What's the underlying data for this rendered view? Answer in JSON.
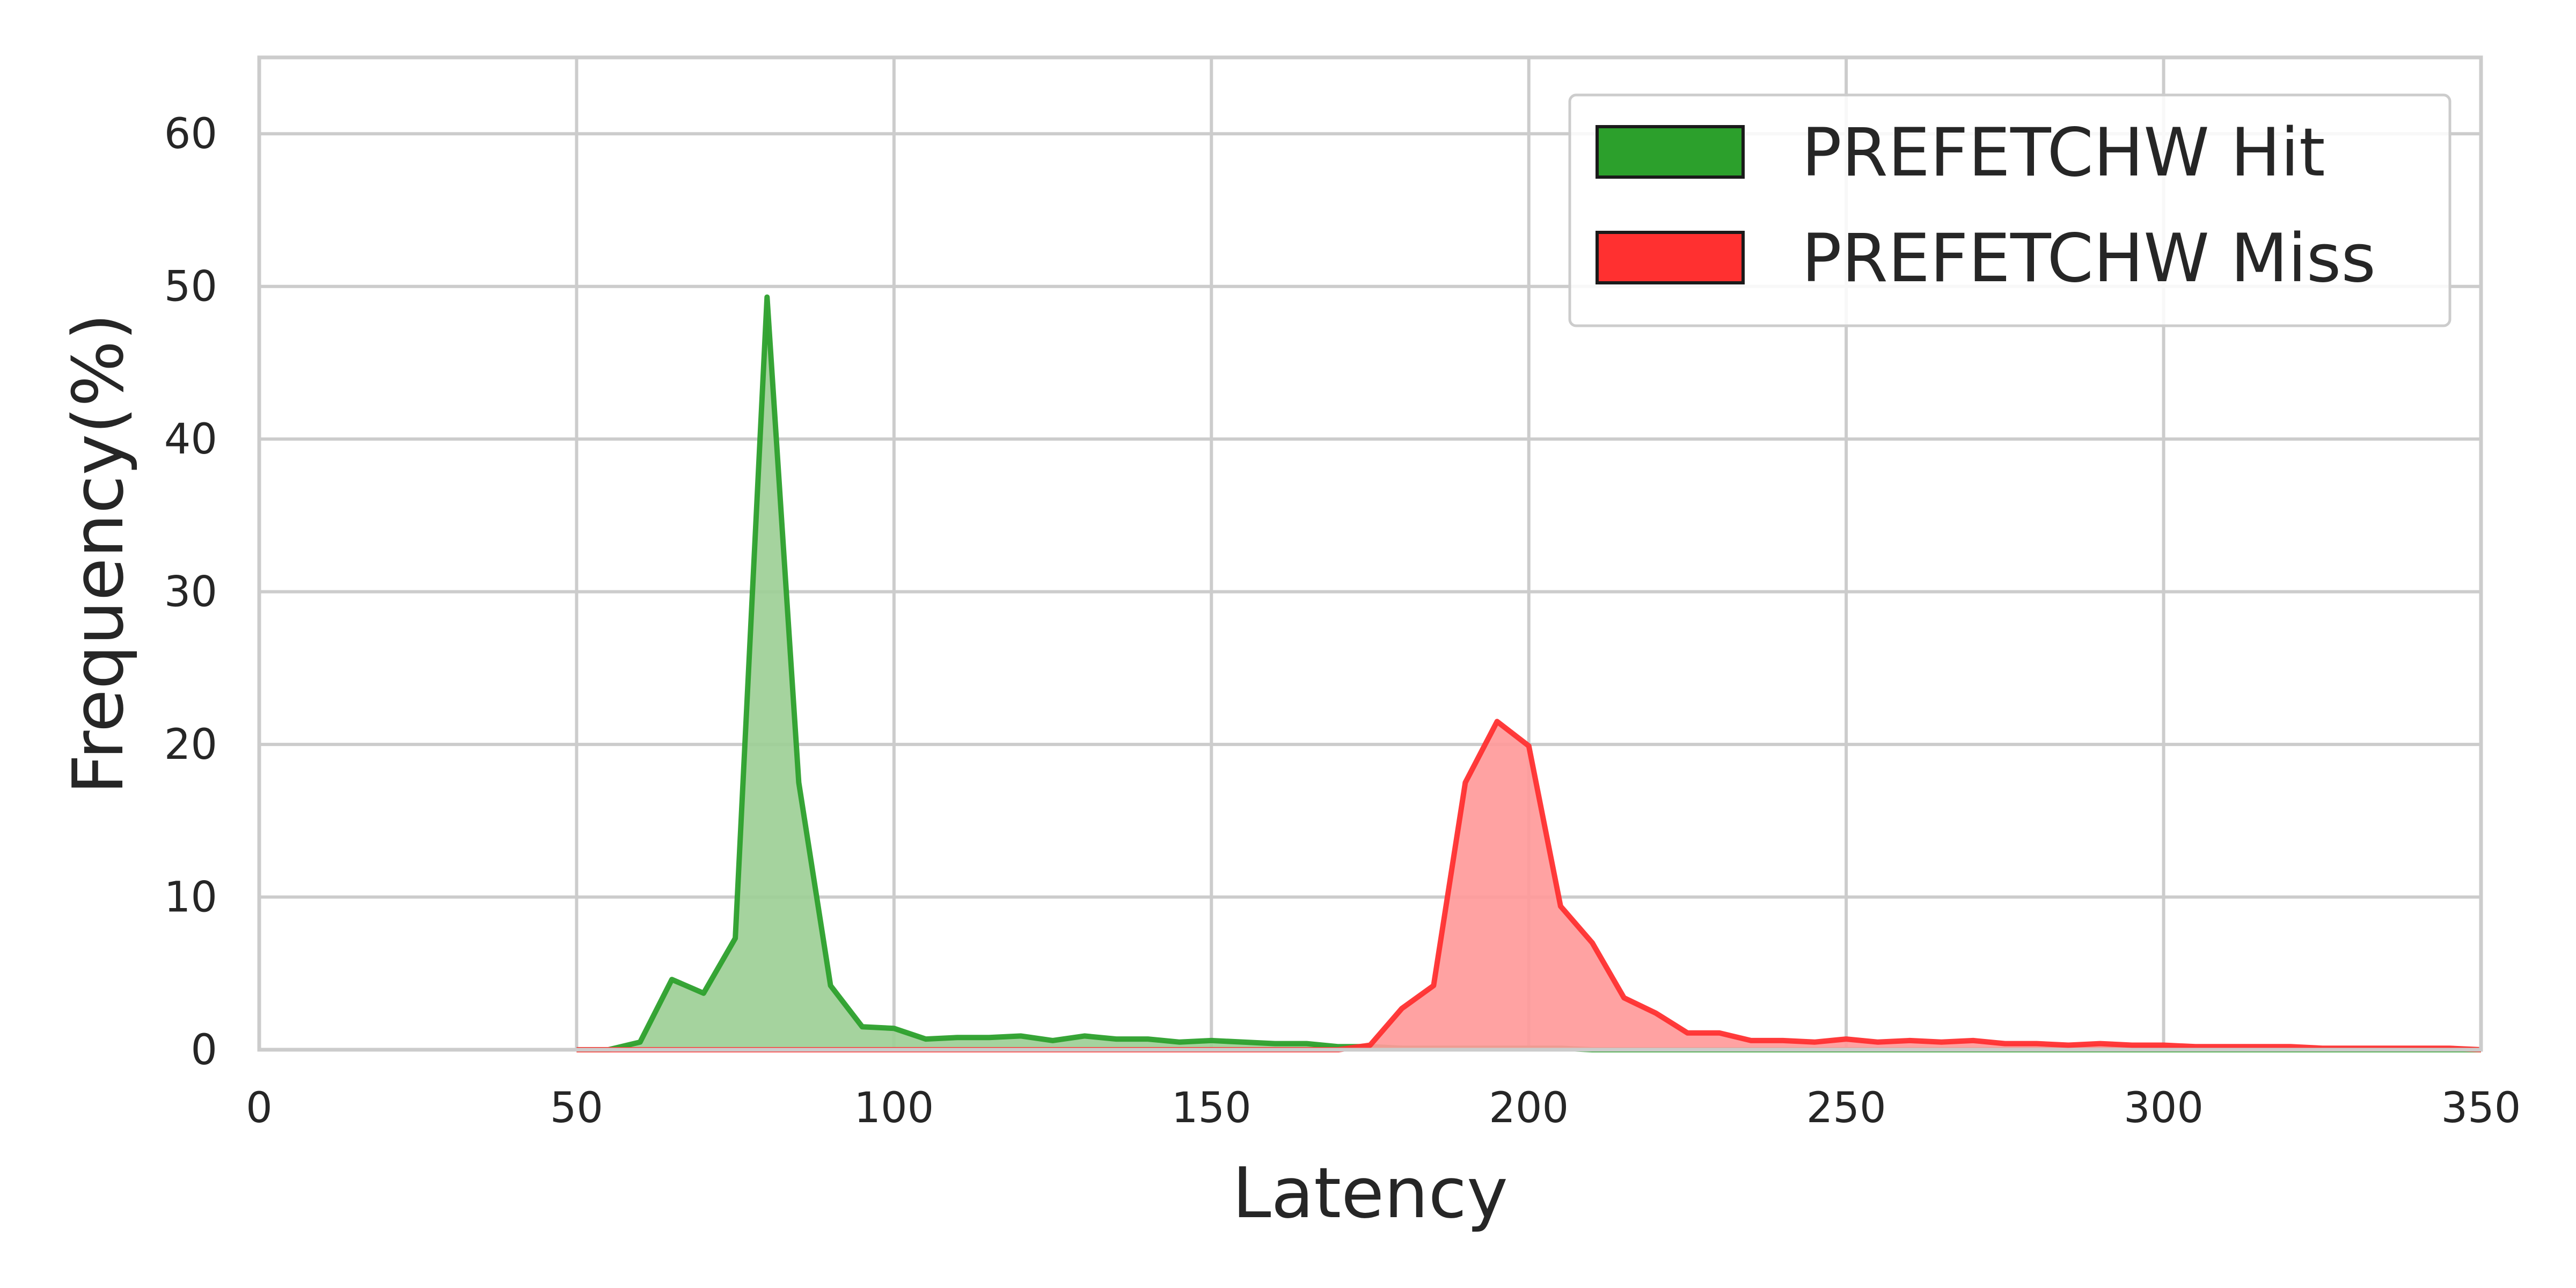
{
  "chart_data": {
    "type": "area",
    "title": "",
    "xlabel": "Latency",
    "ylabel": "Frequency(%)",
    "xlim": [
      0,
      350
    ],
    "ylim": [
      0,
      65
    ],
    "xticks": [
      0,
      50,
      100,
      150,
      200,
      250,
      300,
      350
    ],
    "yticks": [
      0,
      10,
      20,
      30,
      40,
      50,
      60
    ],
    "grid": true,
    "legend_position": "top-right",
    "series": [
      {
        "name": "PREFETCHW Hit",
        "color": "#2ca02c",
        "fill_color": "#9dcf96",
        "x": [
          50,
          55,
          60,
          65,
          70,
          75,
          80,
          85,
          90,
          95,
          100,
          105,
          110,
          115,
          120,
          125,
          130,
          135,
          140,
          145,
          150,
          155,
          160,
          165,
          170,
          175,
          180,
          185,
          190,
          195,
          200,
          205,
          210,
          220,
          240,
          260,
          280,
          300,
          320,
          340,
          350
        ],
        "values": [
          0,
          0,
          0.5,
          4.6,
          3.7,
          7.3,
          49.3,
          17.5,
          4.2,
          1.5,
          1.4,
          0.7,
          0.8,
          0.8,
          0.9,
          0.6,
          0.9,
          0.7,
          0.7,
          0.5,
          0.6,
          0.5,
          0.4,
          0.4,
          0.2,
          0.2,
          0.1,
          0.1,
          0.1,
          0.1,
          0.1,
          0.1,
          0,
          0,
          0,
          0,
          0,
          0,
          0,
          0,
          0
        ]
      },
      {
        "name": "PREFETCHW Miss",
        "color": "#ff3030",
        "fill_color": "#ff9a9a",
        "x": [
          50,
          100,
          150,
          170,
          175,
          180,
          185,
          190,
          195,
          200,
          205,
          210,
          215,
          220,
          225,
          230,
          235,
          240,
          245,
          250,
          255,
          260,
          265,
          270,
          275,
          280,
          285,
          290,
          295,
          300,
          305,
          310,
          315,
          320,
          325,
          330,
          335,
          340,
          345,
          350
        ],
        "values": [
          0,
          0,
          0,
          0,
          0.3,
          2.7,
          4.2,
          17.5,
          21.5,
          19.9,
          9.4,
          7.0,
          3.4,
          2.4,
          1.1,
          1.1,
          0.6,
          0.6,
          0.5,
          0.7,
          0.5,
          0.6,
          0.5,
          0.6,
          0.4,
          0.4,
          0.3,
          0.4,
          0.3,
          0.3,
          0.2,
          0.2,
          0.2,
          0.2,
          0.1,
          0.1,
          0.1,
          0.1,
          0.1,
          0
        ]
      }
    ]
  }
}
